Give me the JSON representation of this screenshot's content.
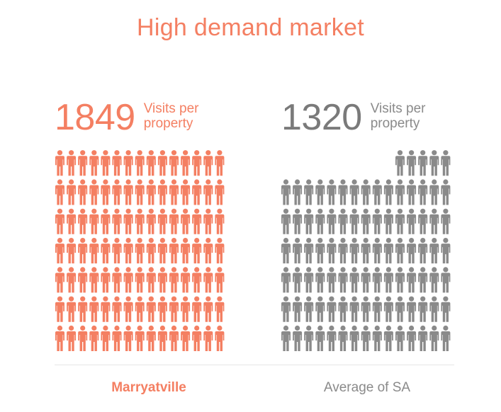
{
  "title": "High demand market",
  "colors": {
    "primary": "#f47f62",
    "secondary": "#8a8a8a"
  },
  "chart_data": {
    "type": "bar",
    "title": "High demand market",
    "categories": [
      "Marryatville",
      "Average of SA"
    ],
    "series": [
      {
        "name": "Visits per property",
        "values": [
          1849,
          1320
        ]
      }
    ],
    "value_labels": [
      "1849",
      "1320"
    ],
    "unit_label": "Visits per\nproperty",
    "icon": "person-icon",
    "icon_grid": {
      "columns": 15,
      "full_rows_left": 7,
      "full_rows_right": 6,
      "partial_row_right": 5
    }
  },
  "stats": {
    "left": {
      "value": "1849",
      "label_line1": "Visits per",
      "label_line2": "property"
    },
    "right": {
      "value": "1320",
      "label_line1": "Visits per",
      "label_line2": "property"
    }
  },
  "labels": {
    "left": "Marryatville",
    "right": "Average of SA"
  }
}
